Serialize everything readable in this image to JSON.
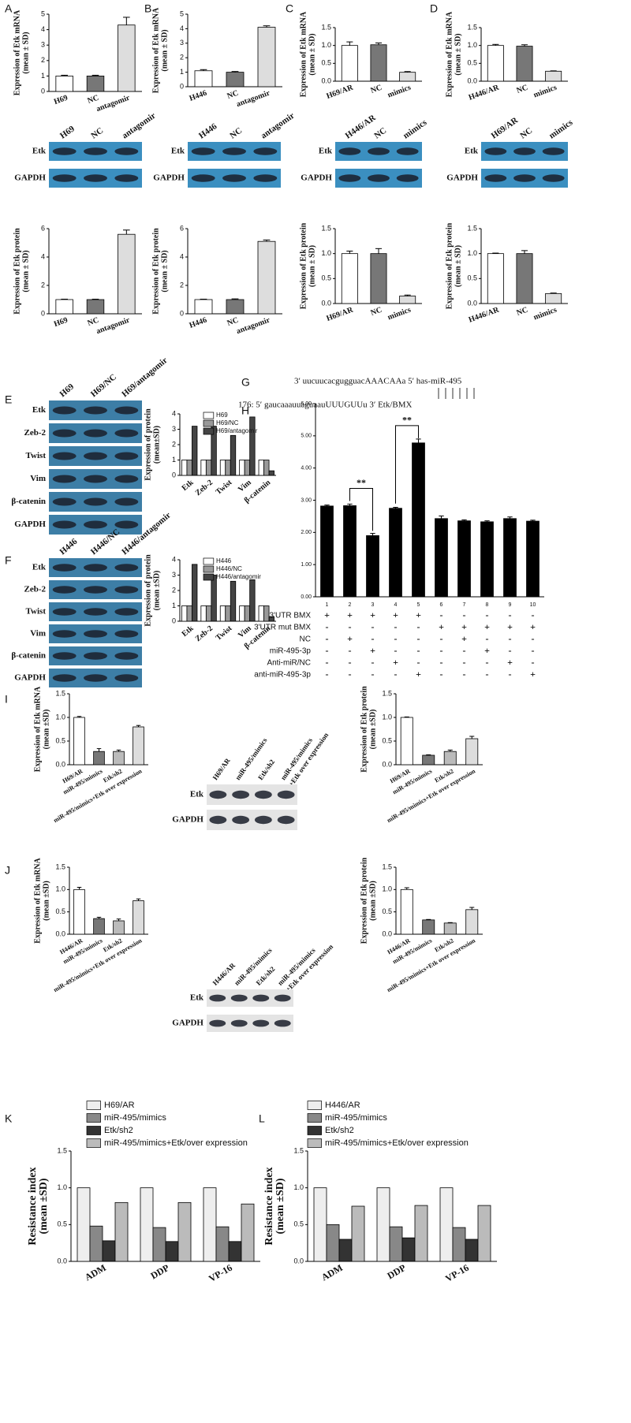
{
  "panel_labels": [
    "A",
    "B",
    "C",
    "D",
    "E",
    "F",
    "G",
    "H",
    "I",
    "J",
    "K",
    "L"
  ],
  "sequence": {
    "lines": [
      "3′ uucuucacgugguacAAACAAa   5′ has-miR-495",
      "176: 5′ gaucaaauuaguaauUUUGUUu   3′ Etk/BMX"
    ]
  },
  "blots": [
    {
      "lanes": [
        "H69",
        "NC",
        "antagomir"
      ],
      "rows": [
        "Etk",
        "GAPDH"
      ]
    },
    {
      "lanes": [
        "H446",
        "NC",
        "antagomir"
      ],
      "rows": [
        "Etk",
        "GAPDH"
      ]
    },
    {
      "lanes": [
        "H446/AR",
        "NC",
        "mimics"
      ],
      "rows": [
        "Etk",
        "GAPDH"
      ]
    },
    {
      "lanes": [
        "H69/AR",
        "NC",
        "mimics"
      ],
      "rows": [
        "Etk",
        "GAPDH"
      ]
    },
    {
      "lanes": [
        "H69",
        "H69/NC",
        "H69/antagomir"
      ],
      "rows": [
        "Etk",
        "Zeb-2",
        "Twist",
        "Vim",
        "β-catenin",
        "GAPDH"
      ]
    },
    {
      "lanes": [
        "H446",
        "H446/NC",
        "H446/antagomir"
      ],
      "rows": [
        "Etk",
        "Zeb-2",
        "Twist",
        "Vim",
        "β-catenin",
        "GAPDH"
      ]
    },
    {
      "lanes": [
        "H69/AR",
        "miR-495/mimics",
        "Etk/sh2",
        [
          "miR-495/mimics",
          "+Etk over expression"
        ]
      ],
      "rows": [
        "Etk",
        "GAPDH"
      ]
    },
    {
      "lanes": [
        "H446/AR",
        "miR-495/mimics",
        "Etk/sh2",
        [
          "miR-495/mimics",
          "+Etk over expression"
        ]
      ],
      "rows": [
        "Etk",
        "GAPDH"
      ]
    }
  ],
  "chart_data": [
    {
      "type": "bar",
      "ylabel": [
        "Expression of Etk mRNA",
        "(mean ± SD)"
      ],
      "categories": [
        "H69",
        "NC",
        "antagomir"
      ],
      "values": [
        1.0,
        1.0,
        4.3
      ],
      "errors": [
        0.05,
        0.05,
        0.5
      ],
      "colors": [
        "#ffffff",
        "#777777",
        "#dddddd"
      ],
      "ylim": [
        0,
        5
      ],
      "yticks": [
        0,
        1,
        2,
        3,
        4,
        5
      ]
    },
    {
      "type": "bar",
      "ylabel": [
        "Expression of Etk protein",
        "(mean ± SD)"
      ],
      "categories": [
        "H69",
        "NC",
        "antagomir"
      ],
      "values": [
        1.0,
        1.0,
        5.6
      ],
      "errors": [
        0.03,
        0.03,
        0.3
      ],
      "colors": [
        "#ffffff",
        "#777777",
        "#dddddd"
      ],
      "ylim": [
        0,
        6
      ],
      "yticks": [
        0,
        2,
        4,
        6
      ]
    },
    {
      "type": "bar",
      "ylabel": [
        "Expression of Etk mRNA",
        "(mean ± SD)"
      ],
      "categories": [
        "H446",
        "NC",
        "antagomir"
      ],
      "values": [
        1.1,
        1.0,
        4.1
      ],
      "errors": [
        0.08,
        0.05,
        0.1
      ],
      "colors": [
        "#ffffff",
        "#777777",
        "#dddddd"
      ],
      "ylim": [
        0,
        5
      ],
      "yticks": [
        0,
        1,
        2,
        3,
        4,
        5
      ]
    },
    {
      "type": "bar",
      "ylabel": [
        "Expression of Etk protein",
        "(mean ± SD)"
      ],
      "categories": [
        "H446",
        "NC",
        "antagomir"
      ],
      "values": [
        1.0,
        1.0,
        5.1
      ],
      "errors": [
        0.03,
        0.05,
        0.1
      ],
      "colors": [
        "#ffffff",
        "#777777",
        "#dddddd"
      ],
      "ylim": [
        0,
        6
      ],
      "yticks": [
        0,
        2,
        4,
        6
      ]
    },
    {
      "type": "bar",
      "ylabel": [
        "Expression of Etk mRNA",
        "(mean ± SD)"
      ],
      "categories": [
        "H69/AR",
        "NC",
        "mimics"
      ],
      "values": [
        1.0,
        1.02,
        0.25
      ],
      "errors": [
        0.1,
        0.05,
        0.02
      ],
      "colors": [
        "#ffffff",
        "#777777",
        "#dddddd"
      ],
      "ylim": [
        0,
        1.5
      ],
      "yticks": [
        {
          "value": 0,
          "label": "0.0"
        },
        0.5,
        {
          "value": 1,
          "label": "1.0"
        },
        1.5
      ]
    },
    {
      "type": "bar",
      "ylabel": [
        "Expression of Etk protein",
        "(mean ± SD)"
      ],
      "categories": [
        "H69/AR",
        "NC",
        "mimics"
      ],
      "values": [
        1.0,
        1.0,
        0.15
      ],
      "errors": [
        0.05,
        0.1,
        0.02
      ],
      "colors": [
        "#ffffff",
        "#777777",
        "#dddddd"
      ],
      "ylim": [
        0,
        1.5
      ],
      "yticks": [
        {
          "value": 0,
          "label": "0.0"
        },
        0.5,
        {
          "value": 1,
          "label": "1.0"
        },
        1.5
      ]
    },
    {
      "type": "bar",
      "ylabel": [
        "Expression of Etk mRNA",
        "(mean ± SD)"
      ],
      "categories": [
        "H446/AR",
        "NC",
        "mimics"
      ],
      "values": [
        1.0,
        0.98,
        0.28
      ],
      "errors": [
        0.03,
        0.04,
        0.01
      ],
      "colors": [
        "#ffffff",
        "#777777",
        "#dddddd"
      ],
      "ylim": [
        0,
        1.5
      ],
      "yticks": [
        {
          "value": 0,
          "label": "0.0"
        },
        0.5,
        {
          "value": 1,
          "label": "1.0"
        },
        1.5
      ]
    },
    {
      "type": "bar",
      "ylabel": [
        "Expression of Etk protein",
        "(mean ± SD)"
      ],
      "categories": [
        "H446/AR",
        "NC",
        "mimics"
      ],
      "values": [
        1.0,
        1.0,
        0.2
      ],
      "errors": [
        0.01,
        0.06,
        0.01
      ],
      "colors": [
        "#ffffff",
        "#777777",
        "#dddddd"
      ],
      "ylim": [
        0,
        1.5
      ],
      "yticks": [
        {
          "value": 0,
          "label": "0.0"
        },
        0.5,
        {
          "value": 1,
          "label": "1.0"
        },
        1.5
      ]
    },
    {
      "type": "bar",
      "ylabel": [
        "Expression of protein",
        "(mean±SD)"
      ],
      "categories": [
        "Etk",
        "Zeb-2",
        "Twist",
        "Vim",
        "β-catenin"
      ],
      "series": [
        {
          "name": "H69",
          "color": "#ffffff",
          "values": [
            1,
            1,
            1,
            1,
            1
          ]
        },
        {
          "name": "H69/NC",
          "color": "#999999",
          "values": [
            1,
            1,
            1,
            1,
            1
          ]
        },
        {
          "name": "H69/antagomir",
          "color": "#444444",
          "values": [
            3.2,
            3.2,
            2.6,
            3.8,
            0.3
          ]
        }
      ],
      "ylim": [
        0,
        4
      ],
      "yticks": [
        0,
        1,
        2,
        3,
        4
      ]
    },
    {
      "type": "bar",
      "ylabel": [
        "Expression of protein",
        "(mean ±SD)"
      ],
      "categories": [
        "Etk",
        "Zeb-2",
        "Twist",
        "Vim",
        "β-catenin"
      ],
      "series": [
        {
          "name": "H446",
          "color": "#ffffff",
          "values": [
            1,
            1,
            1,
            1,
            1
          ]
        },
        {
          "name": "H446/NC",
          "color": "#999999",
          "values": [
            1,
            1,
            1,
            1,
            1
          ]
        },
        {
          "name": "H446/antagomir",
          "color": "#444444",
          "values": [
            3.7,
            3.0,
            2.6,
            2.7,
            0.3
          ]
        }
      ],
      "ylim": [
        0,
        4
      ],
      "yticks": [
        0,
        1,
        2,
        3,
        4
      ]
    },
    {
      "type": "bar",
      "categories": [
        "1",
        "2",
        "3",
        "4",
        "5",
        "6",
        "7",
        "8",
        "9",
        "10"
      ],
      "values": [
        2.82,
        2.83,
        1.9,
        2.75,
        4.78,
        2.43,
        2.36,
        2.33,
        2.43,
        2.35
      ],
      "errors": [
        0.03,
        0.05,
        0.07,
        0.03,
        0.12,
        0.08,
        0.03,
        0.03,
        0.05,
        0.03
      ],
      "colors": [
        "#000000",
        "#000000",
        "#000000",
        "#000000",
        "#000000",
        "#000000",
        "#000000",
        "#000000",
        "#000000",
        "#000000"
      ],
      "ylim": [
        0,
        6
      ],
      "yticks": [
        {
          "value": 0,
          "label": "0.00"
        },
        {
          "value": 1,
          "label": "1.00"
        },
        {
          "value": 2,
          "label": "2.00"
        },
        {
          "value": 3,
          "label": "3.00"
        },
        {
          "value": 4,
          "label": "4.00"
        },
        {
          "value": 5,
          "label": "5.00"
        },
        {
          "value": 6,
          "label": "6.00"
        }
      ],
      "annotations": [
        "**",
        "**"
      ],
      "conditions": [
        {
          "label": "3'UTR BMX",
          "marks": [
            "+",
            "+",
            "+",
            "+",
            "+",
            "-",
            "-",
            "-",
            "-",
            "-"
          ]
        },
        {
          "label": "3'UTR mut BMX",
          "marks": [
            "-",
            "-",
            "-",
            "-",
            "-",
            "+",
            "+",
            "+",
            "+",
            "+"
          ]
        },
        {
          "label": "NC",
          "marks": [
            "-",
            "+",
            "-",
            "-",
            "-",
            "-",
            "+",
            "-",
            "-",
            "-"
          ]
        },
        {
          "label": "miR-495-3p",
          "marks": [
            "-",
            "-",
            "+",
            "-",
            "-",
            "-",
            "-",
            "+",
            "-",
            "-"
          ]
        },
        {
          "label": "Anti-miR/NC",
          "marks": [
            "-",
            "-",
            "-",
            "+",
            "-",
            "-",
            "-",
            "-",
            "+",
            "-"
          ]
        },
        {
          "label": "anti-miR-495-3p",
          "marks": [
            "-",
            "-",
            "-",
            "-",
            "+",
            "-",
            "-",
            "-",
            "-",
            "+"
          ]
        }
      ]
    },
    {
      "type": "bar",
      "ylabel": [
        "Expression of Etk mRNA",
        "(mean ±SD)"
      ],
      "categories": [
        "H69/AR",
        "miR-495/mimics",
        "Etk/sh2",
        "miR-495/mimics+Etk over expression"
      ],
      "values": [
        1.0,
        0.28,
        0.28,
        0.8
      ],
      "errors": [
        0.02,
        0.06,
        0.03,
        0.03
      ],
      "colors": [
        "#ffffff",
        "#777777",
        "#bbbbbb",
        "#dddddd"
      ],
      "ylim": [
        0,
        1.5
      ],
      "yticks": [
        {
          "value": 0,
          "label": "0.0"
        },
        0.5,
        {
          "value": 1,
          "label": "1.0"
        },
        1.5
      ]
    },
    {
      "type": "bar",
      "ylabel": [
        "Expression of Etk protein",
        "(mean ±SD)"
      ],
      "categories": [
        "H69/AR",
        "miR-495/mimics",
        "Etk/sh2",
        "miR-495/mimics+Etk over expression"
      ],
      "values": [
        1.0,
        0.2,
        0.28,
        0.55
      ],
      "errors": [
        0.01,
        0.01,
        0.03,
        0.05
      ],
      "colors": [
        "#ffffff",
        "#777777",
        "#bbbbbb",
        "#dddddd"
      ],
      "ylim": [
        0,
        1.5
      ],
      "yticks": [
        {
          "value": 0,
          "label": "0.0"
        },
        0.5,
        {
          "value": 1,
          "label": "1.0"
        },
        1.5
      ]
    },
    {
      "type": "bar",
      "ylabel": [
        "Expression of Etk mRNA",
        "(mean ±SD)"
      ],
      "categories": [
        "H446/AR",
        "miR-495/mimics",
        "Etk/sh2",
        "miR-495/mimics+Etk over expression"
      ],
      "values": [
        1.0,
        0.35,
        0.3,
        0.75
      ],
      "errors": [
        0.05,
        0.03,
        0.04,
        0.04
      ],
      "colors": [
        "#ffffff",
        "#777777",
        "#bbbbbb",
        "#dddddd"
      ],
      "ylim": [
        0,
        1.5
      ],
      "yticks": [
        {
          "value": 0,
          "label": "0.0"
        },
        0.5,
        {
          "value": 1,
          "label": "1.0"
        },
        1.5
      ]
    },
    {
      "type": "bar",
      "ylabel": [
        "Expression of Etk protein",
        "(mean ±SD)"
      ],
      "categories": [
        "H446/AR",
        "miR-495/mimics",
        "Etk/sh2",
        "miR-495/mimics+Etk over expression"
      ],
      "values": [
        1.0,
        0.32,
        0.25,
        0.55
      ],
      "errors": [
        0.04,
        0.01,
        0.01,
        0.05
      ],
      "colors": [
        "#ffffff",
        "#777777",
        "#bbbbbb",
        "#dddddd"
      ],
      "ylim": [
        0,
        1.5
      ],
      "yticks": [
        {
          "value": 0,
          "label": "0.0"
        },
        0.5,
        {
          "value": 1,
          "label": "1.0"
        },
        1.5
      ]
    },
    {
      "type": "bar",
      "ylabel": [
        "Resistance index",
        "(mean ±SD)"
      ],
      "categories": [
        "ADM",
        "DDP",
        "VP-16"
      ],
      "series": [
        {
          "name": "H69/AR",
          "color": "#eeeeee",
          "values": [
            1.0,
            1.0,
            1.0
          ]
        },
        {
          "name": "miR-495/mimics",
          "color": "#888888",
          "values": [
            0.48,
            0.46,
            0.47
          ]
        },
        {
          "name": "Etk/sh2",
          "color": "#333333",
          "values": [
            0.28,
            0.27,
            0.27
          ]
        },
        {
          "name": "miR-495/mimics+Etk/over expression",
          "color": "#bbbbbb",
          "values": [
            0.8,
            0.8,
            0.78
          ]
        }
      ],
      "ylim": [
        0,
        1.5
      ],
      "yticks": [
        {
          "value": 0,
          "label": "0.0"
        },
        0.5,
        {
          "value": 1,
          "label": "1.0"
        },
        1.5
      ]
    },
    {
      "type": "bar",
      "ylabel": [
        "Resistance index",
        "(mean ±SD)"
      ],
      "categories": [
        "ADM",
        "DDP",
        "VP-16"
      ],
      "series": [
        {
          "name": "H446/AR",
          "color": "#eeeeee",
          "values": [
            1.0,
            1.0,
            1.0
          ]
        },
        {
          "name": "miR-495/mimics",
          "color": "#888888",
          "values": [
            0.5,
            0.47,
            0.46
          ]
        },
        {
          "name": "Etk/sh2",
          "color": "#333333",
          "values": [
            0.3,
            0.32,
            0.3
          ]
        },
        {
          "name": "miR-495/mimics+Etk/over expression",
          "color": "#bbbbbb",
          "values": [
            0.75,
            0.76,
            0.76
          ]
        }
      ],
      "ylim": [
        0,
        1.5
      ],
      "yticks": [
        {
          "value": 0,
          "label": "0.0"
        },
        0.5,
        {
          "value": 1,
          "label": "1.0"
        },
        1.5
      ]
    }
  ]
}
